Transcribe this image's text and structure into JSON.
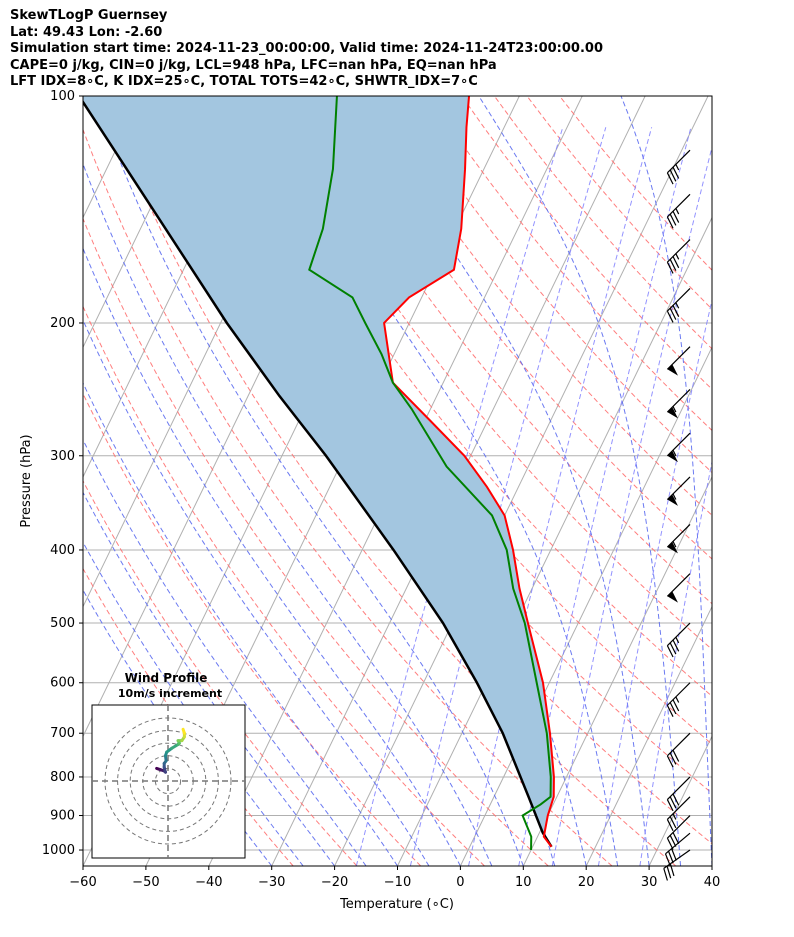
{
  "header": {
    "title": "SkewTLogP Guernsey",
    "location": "Lat: 49.43   Lon: -2.60",
    "times": "Simulation start time: 2024-11-23_00:00:00, Valid time: 2024-11-24T23:00:00.00",
    "cape_line": "CAPE=0 j/kg, CIN=0 j/kg, LCL=948 hPa, LFC=nan hPa, EQ=nan hPa",
    "indices_line": "LFT IDX=8∘C, K IDX=25∘C, TOTAL TOTS=42∘C, SHWTR_IDX=7∘C"
  },
  "colors": {
    "temperature": "#ff0000",
    "dewpoint": "#008000",
    "parcel": "#000000",
    "cape_fill": "#a3c6e0",
    "dry_adiabat": "#ff7070",
    "moist_adiabat": "#5b6cf0",
    "mixing_ratio": "#8080ff",
    "isotherm": "#b0b0b0"
  },
  "chart_data": {
    "type": "skewt",
    "xlabel": "Temperature (∘C)",
    "ylabel": "Pressure (hPa)",
    "xlim": [
      -60,
      40
    ],
    "ylim": [
      1050,
      100
    ],
    "x_ticks": [
      "−60",
      "−50",
      "−40",
      "−30",
      "−20",
      "−10",
      "0",
      "10",
      "20",
      "30",
      "40"
    ],
    "y_ticks": [
      "100",
      "200",
      "300",
      "400",
      "500",
      "600",
      "700",
      "800",
      "900",
      "1000"
    ],
    "temperature_profile": [
      {
        "p": 990,
        "t": 13
      },
      {
        "p": 960,
        "t": 11
      },
      {
        "p": 900,
        "t": 10
      },
      {
        "p": 850,
        "t": 9.5
      },
      {
        "p": 800,
        "t": 8
      },
      {
        "p": 700,
        "t": 4
      },
      {
        "p": 600,
        "t": -1
      },
      {
        "p": 500,
        "t": -8
      },
      {
        "p": 450,
        "t": -12
      },
      {
        "p": 400,
        "t": -16
      },
      {
        "p": 360,
        "t": -20
      },
      {
        "p": 330,
        "t": -25
      },
      {
        "p": 300,
        "t": -31
      },
      {
        "p": 270,
        "t": -39
      },
      {
        "p": 240,
        "t": -48
      },
      {
        "p": 200,
        "t": -54
      },
      {
        "p": 185,
        "t": -52
      },
      {
        "p": 170,
        "t": -47
      },
      {
        "p": 150,
        "t": -49
      },
      {
        "p": 125,
        "t": -53
      },
      {
        "p": 110,
        "t": -56
      },
      {
        "p": 100,
        "t": -58
      }
    ],
    "dewpoint_profile": [
      {
        "p": 1000,
        "t": 10
      },
      {
        "p": 960,
        "t": 9
      },
      {
        "p": 900,
        "t": 6
      },
      {
        "p": 870,
        "t": 8
      },
      {
        "p": 850,
        "t": 9
      },
      {
        "p": 800,
        "t": 7.5
      },
      {
        "p": 700,
        "t": 3.5
      },
      {
        "p": 600,
        "t": -2
      },
      {
        "p": 500,
        "t": -8.5
      },
      {
        "p": 450,
        "t": -13
      },
      {
        "p": 400,
        "t": -17
      },
      {
        "p": 360,
        "t": -22
      },
      {
        "p": 310,
        "t": -33
      },
      {
        "p": 260,
        "t": -43
      },
      {
        "p": 240,
        "t": -48
      },
      {
        "p": 220,
        "t": -52
      },
      {
        "p": 200,
        "t": -57
      },
      {
        "p": 185,
        "t": -61
      },
      {
        "p": 170,
        "t": -70
      },
      {
        "p": 150,
        "t": -71
      },
      {
        "p": 125,
        "t": -74
      },
      {
        "p": 100,
        "t": -79
      }
    ],
    "parcel_profile": [
      {
        "p": 990,
        "t": 13
      },
      {
        "p": 948,
        "t": 10.5
      },
      {
        "p": 850,
        "t": 5.5
      },
      {
        "p": 700,
        "t": -3.5
      },
      {
        "p": 600,
        "t": -11.5
      },
      {
        "p": 500,
        "t": -21.5
      },
      {
        "p": 400,
        "t": -35
      },
      {
        "p": 300,
        "t": -53
      },
      {
        "p": 250,
        "t": -65
      },
      {
        "p": 200,
        "t": -79
      },
      {
        "p": 150,
        "t": -96
      },
      {
        "p": 100,
        "t": -120
      }
    ],
    "cape_fill_label": "",
    "wind_barbs": [
      {
        "p": 1000,
        "speed_kt": 30,
        "dir": 235
      },
      {
        "p": 950,
        "speed_kt": 30,
        "dir": 230
      },
      {
        "p": 900,
        "speed_kt": 30,
        "dir": 225
      },
      {
        "p": 850,
        "speed_kt": 25,
        "dir": 225
      },
      {
        "p": 800,
        "speed_kt": 30,
        "dir": 225
      },
      {
        "p": 700,
        "speed_kt": 30,
        "dir": 225
      },
      {
        "p": 600,
        "speed_kt": 35,
        "dir": 225
      },
      {
        "p": 500,
        "speed_kt": 35,
        "dir": 225
      },
      {
        "p": 430,
        "speed_kt": 50,
        "dir": 225
      },
      {
        "p": 370,
        "speed_kt": 55,
        "dir": 225
      },
      {
        "p": 320,
        "speed_kt": 55,
        "dir": 225
      },
      {
        "p": 280,
        "speed_kt": 55,
        "dir": 225
      },
      {
        "p": 245,
        "speed_kt": 55,
        "dir": 225
      },
      {
        "p": 215,
        "speed_kt": 50,
        "dir": 225
      },
      {
        "p": 180,
        "speed_kt": 35,
        "dir": 225
      },
      {
        "p": 155,
        "speed_kt": 35,
        "dir": 225
      },
      {
        "p": 135,
        "speed_kt": 35,
        "dir": 225
      },
      {
        "p": 118,
        "speed_kt": 35,
        "dir": 225
      }
    ],
    "hodograph": {
      "title": "Wind Profile",
      "subtitle": "10m/s increment",
      "ring_increment_ms": 10,
      "points": [
        {
          "u": -9,
          "v": 10
        },
        {
          "u": -6,
          "v": 9
        },
        {
          "u": -3,
          "v": 8
        },
        {
          "u": -2,
          "v": 7
        },
        {
          "u": -3,
          "v": 11
        },
        {
          "u": -3,
          "v": 14
        },
        {
          "u": -1.5,
          "v": 16
        },
        {
          "u": -2,
          "v": 20
        },
        {
          "u": -1,
          "v": 23
        },
        {
          "u": 3,
          "v": 26
        },
        {
          "u": 8,
          "v": 29
        },
        {
          "u": 9,
          "v": 30
        },
        {
          "u": 8,
          "v": 32
        },
        {
          "u": 11,
          "v": 32
        },
        {
          "u": 13,
          "v": 35
        },
        {
          "u": 13,
          "v": 38
        },
        {
          "u": 12,
          "v": 41
        }
      ]
    }
  }
}
